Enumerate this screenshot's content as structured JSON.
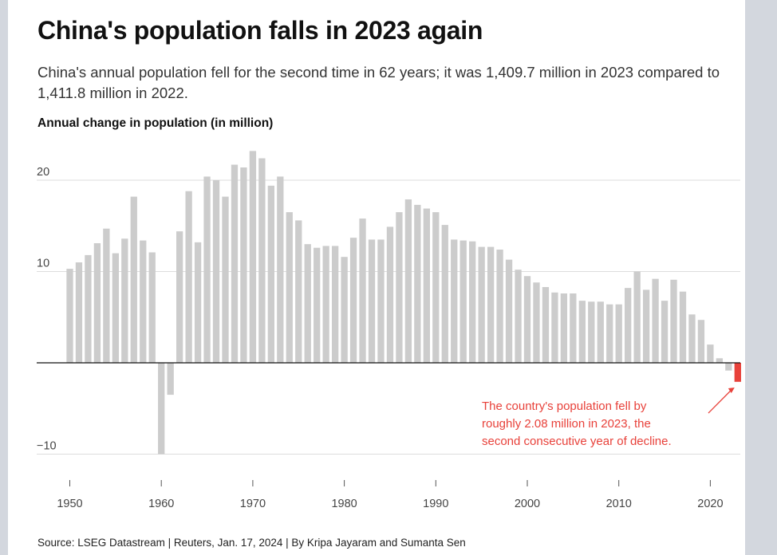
{
  "title": "China's population falls in 2023 again",
  "subtitle": "China's annual population fell for the second time in 62 years; it was 1,409.7 million in 2023 compared to 1,411.8 million in 2022.",
  "chart_label": "Annual change in population (in million)",
  "source": "Source: LSEG Datastream | Reuters, Jan. 17, 2024 | By Kripa Jayaram and Sumanta Sen",
  "colors": {
    "bar": "#cccccc",
    "highlight": "#e8413a",
    "grid": "#dddddd",
    "zero": "#111111"
  },
  "chart_data": {
    "type": "bar",
    "x": [
      1950,
      1951,
      1952,
      1953,
      1954,
      1955,
      1956,
      1957,
      1958,
      1959,
      1960,
      1961,
      1962,
      1963,
      1964,
      1965,
      1966,
      1967,
      1968,
      1969,
      1970,
      1971,
      1972,
      1973,
      1974,
      1975,
      1976,
      1977,
      1978,
      1979,
      1980,
      1981,
      1982,
      1983,
      1984,
      1985,
      1986,
      1987,
      1988,
      1989,
      1990,
      1991,
      1992,
      1993,
      1994,
      1995,
      1996,
      1997,
      1998,
      1999,
      2000,
      2001,
      2002,
      2003,
      2004,
      2005,
      2006,
      2007,
      2008,
      2009,
      2010,
      2011,
      2012,
      2013,
      2014,
      2015,
      2016,
      2017,
      2018,
      2019,
      2020,
      2021,
      2022,
      2023
    ],
    "values": [
      10.3,
      11.0,
      11.8,
      13.1,
      14.7,
      12.0,
      13.6,
      18.2,
      13.4,
      12.1,
      -10.0,
      -3.5,
      14.4,
      18.8,
      13.2,
      20.4,
      20.0,
      18.2,
      21.7,
      21.4,
      23.2,
      22.4,
      19.4,
      20.4,
      16.5,
      15.6,
      13.0,
      12.6,
      12.8,
      12.8,
      11.6,
      13.7,
      15.8,
      13.5,
      13.5,
      14.9,
      16.5,
      17.9,
      17.3,
      16.9,
      16.5,
      15.1,
      13.5,
      13.4,
      13.3,
      12.7,
      12.7,
      12.4,
      11.3,
      10.2,
      9.5,
      8.8,
      8.3,
      7.7,
      7.6,
      7.6,
      6.8,
      6.7,
      6.7,
      6.4,
      6.4,
      8.2,
      10.0,
      8.0,
      9.2,
      6.8,
      9.1,
      7.8,
      5.3,
      4.7,
      2.0,
      0.5,
      -0.85,
      -2.08
    ],
    "highlight_year": 2023,
    "x_ticks": [
      1950,
      1960,
      1970,
      1980,
      1990,
      2000,
      2010,
      2020
    ],
    "y_ticks": [
      {
        "value": -10,
        "label": "−10"
      },
      {
        "value": 0,
        "label": ""
      },
      {
        "value": 10,
        "label": "10"
      },
      {
        "value": 20,
        "label": "20"
      }
    ],
    "ylim": [
      -10,
      23.2
    ],
    "grid": true,
    "annotation": {
      "year": 2023,
      "lines": [
        "The country's population fell by",
        "roughly 2.08 million in 2023, the",
        "second consecutive year of decline."
      ]
    }
  }
}
